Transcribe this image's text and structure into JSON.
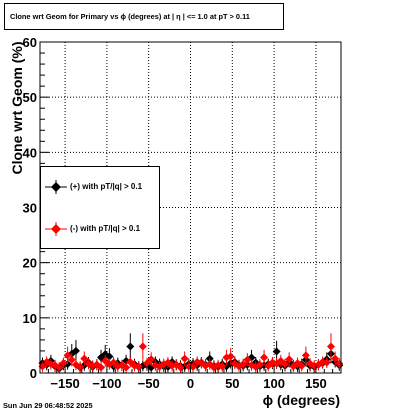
{
  "timestamp": "Sun Jun 29 06:48:52 2025",
  "chart_data": {
    "type": "scatter",
    "title": "Clone wrt Geom for Primary vs ϕ (degrees) at |  η  | <= 1.0 at pT > 0.11",
    "xlabel": "ϕ (degrees)",
    "ylabel": "Clone wrt Geom (%)",
    "xlim": [
      -180,
      180
    ],
    "ylim": [
      0,
      60
    ],
    "x_ticks": [
      -150,
      -100,
      -50,
      0,
      50,
      100,
      150
    ],
    "x_tick_labels": [
      "−150",
      "−100",
      "−50",
      "0",
      "50",
      "100",
      "150"
    ],
    "y_ticks": [
      0,
      10,
      20,
      30,
      40,
      50,
      60
    ],
    "grid": true,
    "legend_position": "left-middle",
    "series": [
      {
        "name": "(+) with pT/|q| > 0.1",
        "color": "#000000",
        "x": [
          -177,
          -172,
          -167,
          -162,
          -157,
          -152,
          -147,
          -142,
          -137,
          -132,
          -127,
          -122,
          -117,
          -112,
          -107,
          -102,
          -97,
          -92,
          -87,
          -82,
          -77,
          -72,
          -67,
          -62,
          -57,
          -52,
          -47,
          -42,
          -37,
          -32,
          -27,
          -22,
          -17,
          -12,
          -7,
          -2,
          3,
          8,
          13,
          18,
          23,
          28,
          33,
          38,
          43,
          48,
          53,
          58,
          63,
          68,
          73,
          78,
          83,
          88,
          93,
          98,
          103,
          108,
          113,
          118,
          123,
          128,
          133,
          138,
          143,
          148,
          153,
          158,
          163,
          168,
          173,
          178
        ],
        "y": [
          1.8,
          1.5,
          2.2,
          1.2,
          0.8,
          1.5,
          1.6,
          3.5,
          4.0,
          1.0,
          1.4,
          1.9,
          1.1,
          1.5,
          2.8,
          3.4,
          3.0,
          1.2,
          1.8,
          1.4,
          2.2,
          4.8,
          1.6,
          1.1,
          1.3,
          1.4,
          1.0,
          2.0,
          1.6,
          1.2,
          1.1,
          2.0,
          1.5,
          1.3,
          1.2,
          1.6,
          1.7,
          1.4,
          1.9,
          1.5,
          2.6,
          1.3,
          1.1,
          1.6,
          1.2,
          1.8,
          2.0,
          1.4,
          1.3,
          1.5,
          2.8,
          1.9,
          1.2,
          1.4,
          1.6,
          1.7,
          3.9,
          1.5,
          1.3,
          2.0,
          1.4,
          1.2,
          1.6,
          2.4,
          1.3,
          1.1,
          1.5,
          1.8,
          2.5,
          3.5,
          2.0,
          1.4
        ]
      },
      {
        "name": "(-) with pT/|q| > 0.1",
        "color": "#ff0000",
        "x": [
          -177,
          -172,
          -167,
          -162,
          -157,
          -152,
          -147,
          -142,
          -137,
          -132,
          -127,
          -122,
          -117,
          -112,
          -107,
          -102,
          -97,
          -92,
          -87,
          -82,
          -77,
          -72,
          -67,
          -62,
          -57,
          -52,
          -47,
          -42,
          -37,
          -32,
          -27,
          -22,
          -17,
          -12,
          -7,
          -2,
          3,
          8,
          13,
          18,
          23,
          28,
          33,
          38,
          43,
          48,
          53,
          58,
          63,
          68,
          73,
          78,
          83,
          88,
          93,
          98,
          103,
          108,
          113,
          118,
          123,
          128,
          133,
          138,
          143,
          148,
          153,
          158,
          163,
          168,
          173,
          178
        ],
        "y": [
          1.2,
          2.0,
          1.6,
          1.4,
          1.0,
          1.8,
          3.2,
          2.4,
          1.5,
          1.1,
          2.6,
          1.7,
          1.3,
          1.5,
          1.0,
          2.2,
          1.6,
          1.9,
          1.2,
          1.4,
          1.0,
          2.0,
          1.3,
          1.2,
          4.8,
          1.8,
          2.5,
          1.4,
          1.1,
          1.6,
          1.9,
          1.3,
          1.5,
          1.0,
          2.6,
          1.2,
          1.1,
          2.0,
          1.8,
          1.3,
          1.6,
          1.0,
          1.4,
          1.2,
          2.8,
          3.0,
          1.7,
          1.2,
          1.6,
          2.4,
          1.4,
          1.1,
          1.5,
          2.8,
          1.3,
          1.9,
          1.7,
          2.2,
          1.6,
          2.5,
          1.2,
          1.8,
          1.3,
          3.2,
          1.7,
          1.3,
          1.5,
          2.0,
          1.9,
          4.8,
          2.6,
          1.7
        ]
      }
    ]
  }
}
